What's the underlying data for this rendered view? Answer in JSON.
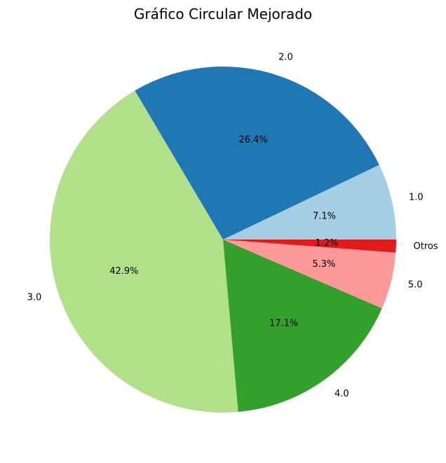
{
  "chart_data": {
    "type": "pie",
    "title": "Gráfico Circular Mejorado",
    "slices": [
      {
        "label": "1.0",
        "value": 7.1,
        "pct_label": "7.1%",
        "color": "#a6cee3"
      },
      {
        "label": "2.0",
        "value": 26.4,
        "pct_label": "26.4%",
        "color": "#1f78b4"
      },
      {
        "label": "3.0",
        "value": 42.9,
        "pct_label": "42.9%",
        "color": "#b2df8a"
      },
      {
        "label": "4.0",
        "value": 17.1,
        "pct_label": "17.1%",
        "color": "#33a02c"
      },
      {
        "label": "5.0",
        "value": 5.3,
        "pct_label": "5.3%",
        "color": "#fb9a99"
      },
      {
        "label": "Otros",
        "value": 1.2,
        "pct_label": "1.2%",
        "color": "#e31a1c"
      }
    ],
    "start_angle": 0,
    "direction": "counterclockwise",
    "legend": "none"
  }
}
